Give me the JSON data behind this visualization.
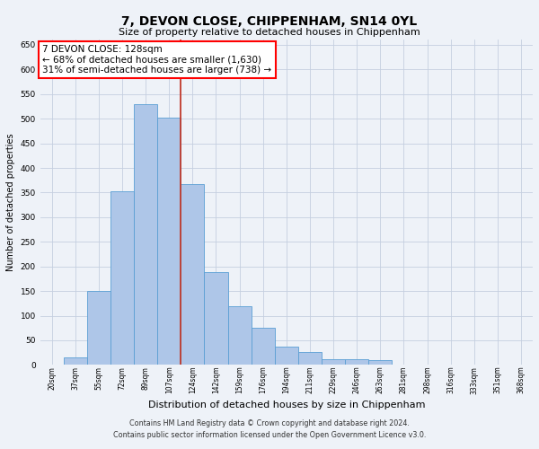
{
  "title": "7, DEVON CLOSE, CHIPPENHAM, SN14 0YL",
  "subtitle": "Size of property relative to detached houses in Chippenham",
  "xlabel": "Distribution of detached houses by size in Chippenham",
  "ylabel": "Number of detached properties",
  "footer_line1": "Contains HM Land Registry data © Crown copyright and database right 2024.",
  "footer_line2": "Contains public sector information licensed under the Open Government Licence v3.0.",
  "categories": [
    "20sqm",
    "37sqm",
    "55sqm",
    "72sqm",
    "89sqm",
    "107sqm",
    "124sqm",
    "142sqm",
    "159sqm",
    "176sqm",
    "194sqm",
    "211sqm",
    "229sqm",
    "246sqm",
    "263sqm",
    "281sqm",
    "298sqm",
    "316sqm",
    "333sqm",
    "351sqm",
    "368sqm"
  ],
  "values": [
    0,
    15,
    150,
    353,
    530,
    502,
    367,
    188,
    120,
    75,
    38,
    27,
    12,
    12,
    10,
    0,
    0,
    0,
    0,
    0,
    0
  ],
  "bar_color": "#aec6e8",
  "bar_edge_color": "#5a9fd4",
  "highlight_index": 6,
  "highlight_line_color": "#c0392b",
  "annotation_text_line1": "7 DEVON CLOSE: 128sqm",
  "annotation_text_line2": "← 68% of detached houses are smaller (1,630)",
  "annotation_text_line3": "31% of semi-detached houses are larger (738) →",
  "ylim": [
    0,
    660
  ],
  "yticks": [
    0,
    50,
    100,
    150,
    200,
    250,
    300,
    350,
    400,
    450,
    500,
    550,
    600,
    650
  ],
  "background_color": "#eef2f8",
  "plot_background_color": "#eef2f8",
  "grid_color": "#c5cfe0"
}
